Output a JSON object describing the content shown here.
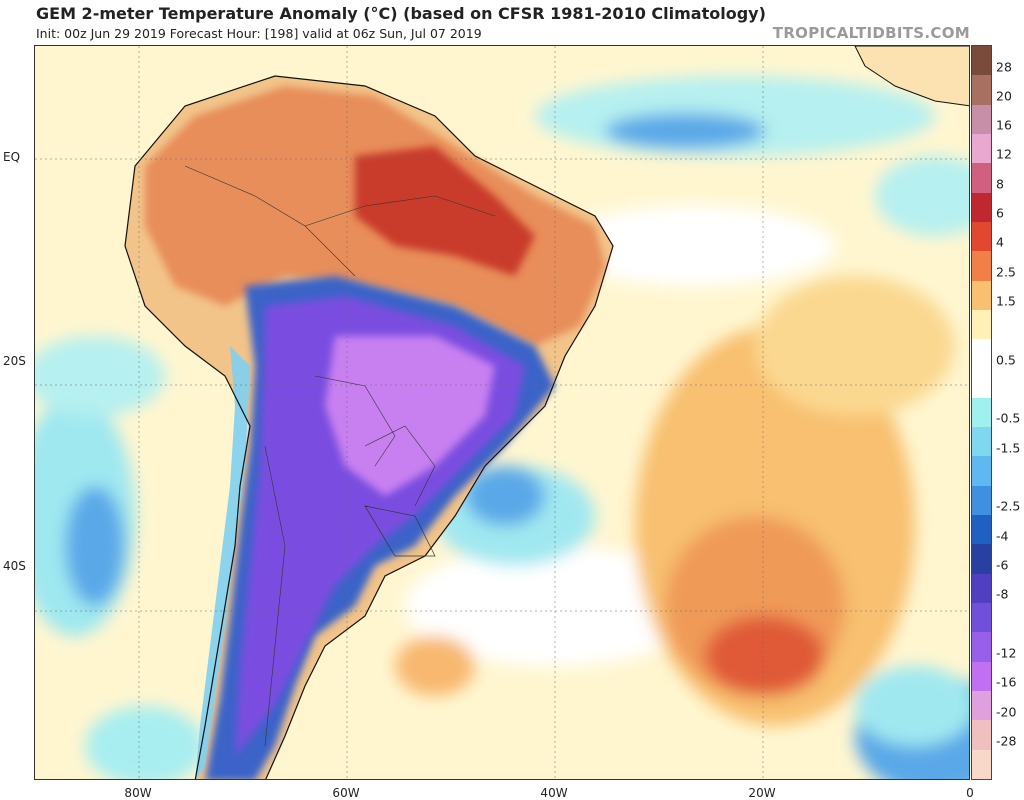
{
  "header": {
    "title": "GEM 2-meter Temperature Anomaly (°C) (based on CFSR 1981-2010 Climatology)",
    "subtitle": "Init: 00z Jun 29 2019   Forecast Hour: [198]   valid at 06z Sun, Jul 07 2019",
    "source": "TROPICALTIDBITS.COM"
  },
  "map": {
    "lat_ticks": [
      {
        "label": "EQ",
        "lat": 0
      },
      {
        "label": "20S",
        "lat": -20
      },
      {
        "label": "40S",
        "lat": -40
      }
    ],
    "lon_ticks": [
      {
        "label": "80W",
        "lon": -80
      },
      {
        "label": "60W",
        "lon": -60
      },
      {
        "label": "40W",
        "lon": -40
      },
      {
        "label": "20W",
        "lon": -20
      },
      {
        "label": "0",
        "lon": 0
      }
    ]
  },
  "colorbar": {
    "levels": [
      {
        "label": "28",
        "color": "#7a4a3a"
      },
      {
        "label": "20",
        "color": "#a87060"
      },
      {
        "label": "16",
        "color": "#c890a8"
      },
      {
        "label": "12",
        "color": "#e8a8d0"
      },
      {
        "label": "8",
        "color": "#d06080"
      },
      {
        "label": "6",
        "color": "#c02830"
      },
      {
        "label": "4",
        "color": "#e04830"
      },
      {
        "label": "2.5",
        "color": "#f08048"
      },
      {
        "label": "1.5",
        "color": "#f8c070"
      },
      {
        "label": "",
        "color": "#fff0b8"
      },
      {
        "label": "0.5",
        "color": "#ffffff"
      },
      {
        "label": "",
        "color": "#ffffff"
      },
      {
        "label": "-0.5",
        "color": "#a0f0f0"
      },
      {
        "label": "-1.5",
        "color": "#80d8f0"
      },
      {
        "label": "",
        "color": "#60b8f0"
      },
      {
        "label": "-2.5",
        "color": "#4090e0"
      },
      {
        "label": "-4",
        "color": "#2060c0"
      },
      {
        "label": "-6",
        "color": "#2840a0"
      },
      {
        "label": "-8",
        "color": "#5040c0"
      },
      {
        "label": "",
        "color": "#7050d8"
      },
      {
        "label": "-12",
        "color": "#9860e8"
      },
      {
        "label": "-16",
        "color": "#c070f0"
      },
      {
        "label": "-20",
        "color": "#e0a0e0"
      },
      {
        "label": "-28",
        "color": "#f0c0c0"
      },
      {
        "label": "",
        "color": "#f8d8c8"
      }
    ]
  }
}
